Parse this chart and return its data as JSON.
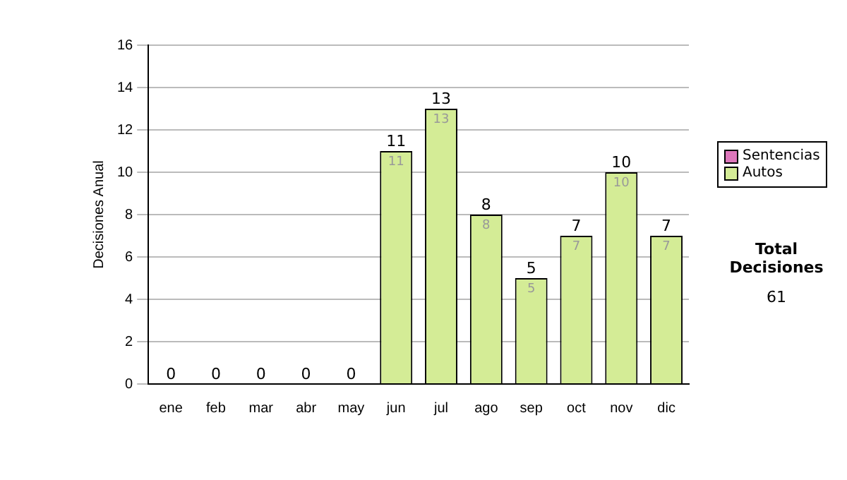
{
  "chart_data": {
    "type": "bar",
    "stacked": true,
    "ylabel": "Decisiones Anual",
    "categories": [
      "ene",
      "feb",
      "mar",
      "abr",
      "may",
      "jun",
      "jul",
      "ago",
      "sep",
      "oct",
      "nov",
      "dic"
    ],
    "series": [
      {
        "name": "Sentencias",
        "color": "#dd77bb",
        "values": [
          0,
          0,
          0,
          0,
          0,
          0,
          0,
          0,
          0,
          0,
          0,
          0
        ]
      },
      {
        "name": "Autos",
        "color": "#d4ec96",
        "values": [
          0,
          0,
          0,
          0,
          0,
          11,
          13,
          8,
          5,
          7,
          10,
          7
        ],
        "value_labels": [
          null,
          null,
          null,
          null,
          null,
          "11",
          "13",
          "8",
          "5",
          "7",
          "10",
          "7"
        ]
      }
    ],
    "totals": [
      "0",
      "0",
      "0",
      "0",
      "0",
      "11",
      "13",
      "8",
      "5",
      "7",
      "10",
      "7"
    ],
    "ylim": [
      0,
      16
    ],
    "yticks": [
      0,
      2,
      4,
      6,
      8,
      10,
      12,
      14,
      16
    ],
    "grid": "y",
    "legend": "right",
    "annotations": [
      "Total Decisiones",
      "61"
    ]
  }
}
